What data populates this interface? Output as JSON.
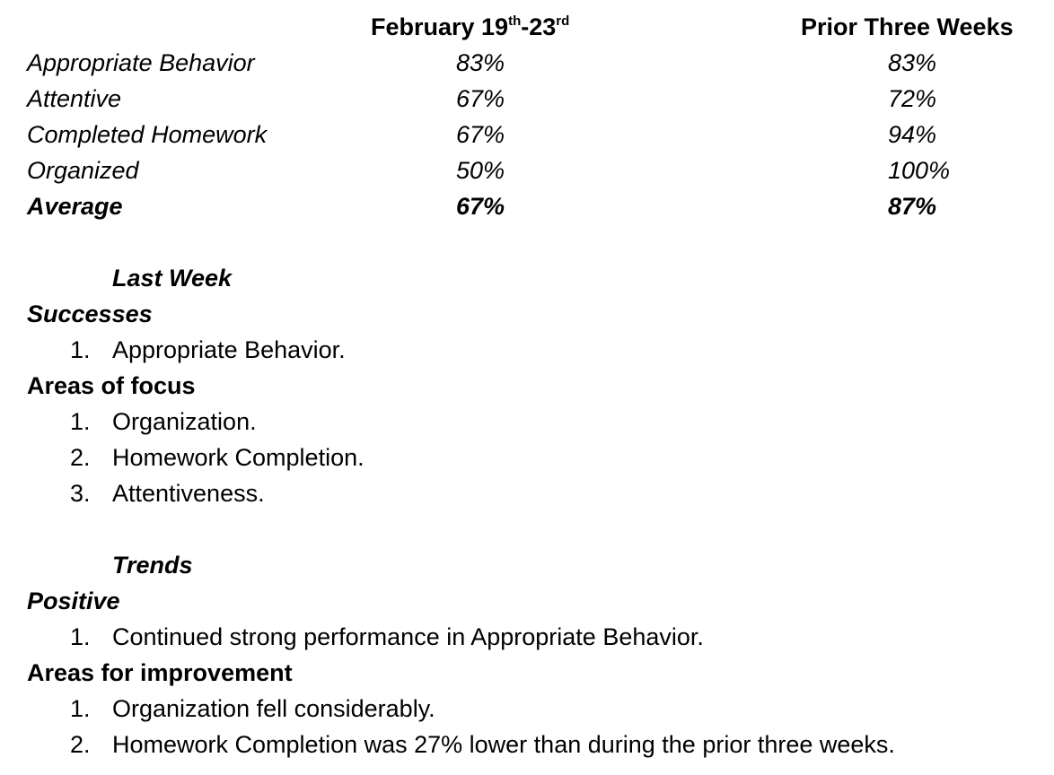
{
  "table": {
    "header": {
      "col_a_main": "February 19",
      "col_a_sup1": "th",
      "col_a_mid": "-23",
      "col_a_sup2": "rd",
      "col_b": "Prior Three Weeks"
    },
    "rows": [
      {
        "label": "Appropriate Behavior",
        "a": "83%",
        "b": "83%"
      },
      {
        "label": "Attentive",
        "a": "67%",
        "b": "72%"
      },
      {
        "label": "Completed Homework",
        "a": "67%",
        "b": "94%"
      },
      {
        "label": "Organized",
        "a": "50%",
        "b": "100%"
      },
      {
        "label": "Average",
        "a": "67%",
        "b": "87%"
      }
    ]
  },
  "last_week": {
    "title": "Last Week",
    "successes_heading": "Successes",
    "successes": [
      {
        "num": "1.",
        "text": "Appropriate Behavior."
      }
    ],
    "focus_heading": "Areas of focus",
    "focus": [
      {
        "num": "1.",
        "text": "Organization."
      },
      {
        "num": "2.",
        "text": "Homework Completion."
      },
      {
        "num": "3.",
        "text": "Attentiveness."
      }
    ]
  },
  "trends": {
    "title": "Trends",
    "positive_heading": "Positive",
    "positive": [
      {
        "num": "1.",
        "text": "Continued strong performance in Appropriate Behavior."
      }
    ],
    "improvement_heading": "Areas for improvement",
    "improvement": [
      {
        "num": "1.",
        "text": "Organization fell considerably."
      },
      {
        "num": "2.",
        "text": "Homework Completion was 27% lower than during the prior three weeks."
      }
    ]
  }
}
